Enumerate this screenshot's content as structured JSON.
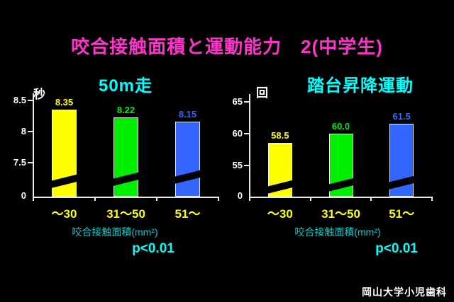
{
  "slide": {
    "title": "咬合接触面積と運動能力　2(中学生)",
    "footer": "岡山大学小児歯科"
  },
  "colors": {
    "background": "#000000",
    "slide_title": "#ff33cc",
    "chart_title": "#00ffff",
    "axis": "#e8e8e8",
    "tick_label": "#ffffff",
    "category_label": "#ffff00",
    "xaxis_label": "#00cccc",
    "p_value": "#00ffff",
    "bar_yellow": "#ffff00",
    "bar_green": "#00ee00",
    "bar_blue": "#3366ff"
  },
  "chart_data": [
    {
      "type": "bar",
      "title": "50m走",
      "ylabel": "秒",
      "xlabel": "咬合接触面積(mm²)",
      "categories": [
        "～30",
        "31～50",
        "51～"
      ],
      "values": [
        8.35,
        8.22,
        8.15
      ],
      "value_labels": [
        "8.35",
        "8.22",
        "8.15"
      ],
      "bar_colors": [
        "#ffff00",
        "#00ee00",
        "#3366ff"
      ],
      "y_ticks": [
        8.5,
        8,
        7.5
      ],
      "y_base_label": "0",
      "axis_break": true,
      "ylim_display": [
        7.5,
        8.5
      ],
      "annotation": "p<0.01",
      "grid": false,
      "legend": false
    },
    {
      "type": "bar",
      "title": "踏台昇降運動",
      "ylabel": "回",
      "xlabel": "咬合接触面積(mm²)",
      "categories": [
        "～30",
        "31～50",
        "51～"
      ],
      "values": [
        58.5,
        60.0,
        61.5
      ],
      "value_labels": [
        "58.5",
        "60.0",
        "61.5"
      ],
      "bar_colors": [
        "#ffff00",
        "#00ee00",
        "#3366ff"
      ],
      "y_ticks": [
        65,
        60,
        55
      ],
      "y_base_label": "0",
      "axis_break": true,
      "ylim_display": [
        55,
        65
      ],
      "annotation": "p<0.01",
      "grid": false,
      "legend": false
    }
  ]
}
